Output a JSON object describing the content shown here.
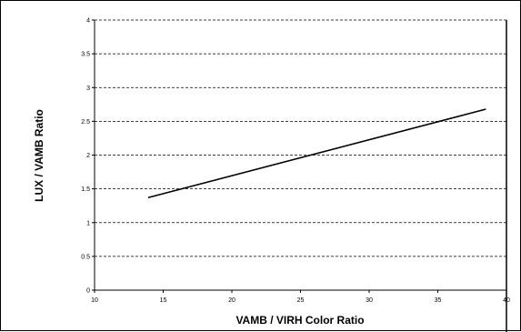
{
  "chart_data": {
    "type": "line",
    "title": "",
    "xlabel": "VAMB / VIRH Color Ratio",
    "ylabel": "LUX / VAMB Ratio",
    "xlim": [
      10,
      40
    ],
    "ylim": [
      0,
      4
    ],
    "x_ticks": [
      10,
      15,
      20,
      25,
      30,
      35,
      40
    ],
    "y_ticks": [
      0,
      0.5,
      1,
      1.5,
      2,
      2.5,
      3,
      3.5,
      4
    ],
    "grid": "horizontal-dashed",
    "legend": "none",
    "series": [
      {
        "x": [
          13.9,
          38.5
        ],
        "y": [
          1.37,
          2.68
        ],
        "color": "#000000"
      }
    ]
  }
}
